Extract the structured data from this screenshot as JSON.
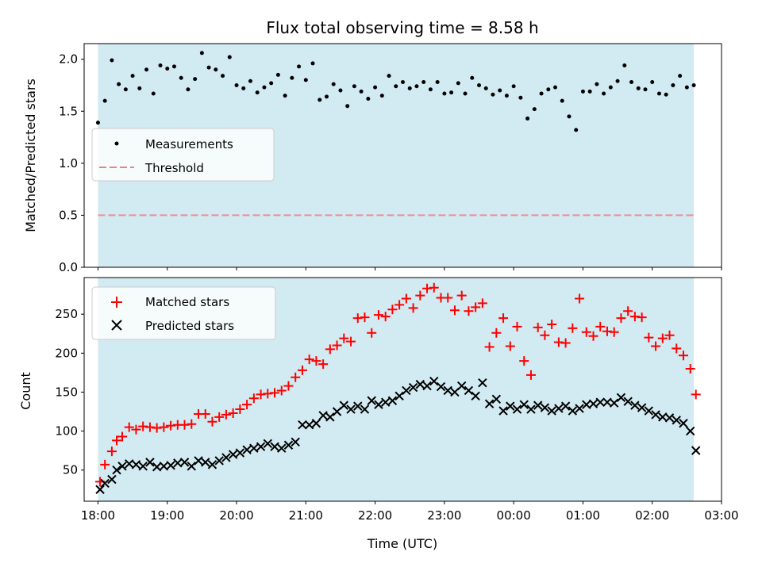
{
  "chart_data": [
    {
      "type": "scatter",
      "panel": "top",
      "title": "Flux total observing time = 8.58 h",
      "ylabel": "Matched/Predicted stars",
      "xlabel": "",
      "xlim": [
        17.8,
        27.0
      ],
      "ylim": [
        0.0,
        2.15
      ],
      "yticks": [
        0.0,
        0.5,
        1.0,
        1.5,
        2.0
      ],
      "ytick_labels": [
        "0.0",
        "0.5",
        "1.0",
        "1.5",
        "2.0"
      ],
      "shaded_span": [
        18.0,
        26.6
      ],
      "legend": {
        "location": "center-left",
        "entries": [
          "Measurements",
          "Threshold"
        ]
      },
      "threshold": {
        "name": "Threshold",
        "value": 0.5,
        "color": "#f08080"
      },
      "series": [
        {
          "name": "Measurements",
          "marker": "dot",
          "color": "#000000",
          "x": [
            18.0,
            18.1,
            18.2,
            18.3,
            18.4,
            18.5,
            18.6,
            18.7,
            18.8,
            18.9,
            19.0,
            19.1,
            19.2,
            19.3,
            19.4,
            19.5,
            19.6,
            19.7,
            19.8,
            19.9,
            20.0,
            20.1,
            20.2,
            20.3,
            20.4,
            20.5,
            20.6,
            20.7,
            20.8,
            20.9,
            21.0,
            21.1,
            21.2,
            21.3,
            21.4,
            21.5,
            21.6,
            21.7,
            21.8,
            21.9,
            22.0,
            22.1,
            22.2,
            22.3,
            22.4,
            22.5,
            22.6,
            22.7,
            22.8,
            22.9,
            23.0,
            23.1,
            23.2,
            23.3,
            23.4,
            23.5,
            23.6,
            23.7,
            23.8,
            23.9,
            24.0,
            24.1,
            24.2,
            24.3,
            24.4,
            24.5,
            24.6,
            24.7,
            24.8,
            24.9,
            25.0,
            25.1,
            25.2,
            25.3,
            25.4,
            25.5,
            25.6,
            25.7,
            25.8,
            25.9,
            26.0,
            26.1,
            26.2,
            26.3,
            26.4,
            26.5,
            26.6
          ],
          "y": [
            1.39,
            1.6,
            1.99,
            1.76,
            1.71,
            1.84,
            1.72,
            1.9,
            1.67,
            1.94,
            1.91,
            1.93,
            1.82,
            1.71,
            1.81,
            2.06,
            1.92,
            1.9,
            1.84,
            2.02,
            1.75,
            1.72,
            1.79,
            1.68,
            1.73,
            1.77,
            1.85,
            1.65,
            1.82,
            1.93,
            1.8,
            1.96,
            1.61,
            1.64,
            1.76,
            1.7,
            1.55,
            1.74,
            1.69,
            1.62,
            1.73,
            1.65,
            1.84,
            1.74,
            1.78,
            1.72,
            1.74,
            1.78,
            1.71,
            1.78,
            1.67,
            1.68,
            1.77,
            1.67,
            1.82,
            1.75,
            1.72,
            1.66,
            1.7,
            1.65,
            1.74,
            1.63,
            1.43,
            1.52,
            1.67,
            1.71,
            1.73,
            1.6,
            1.45,
            1.32,
            1.69,
            1.69,
            1.76,
            1.67,
            1.73,
            1.79,
            1.94,
            1.78,
            1.72,
            1.71,
            1.78,
            1.67,
            1.66,
            1.75,
            1.84,
            1.73,
            1.75
          ]
        }
      ]
    },
    {
      "type": "scatter",
      "panel": "bottom",
      "title": "",
      "ylabel": "Count",
      "xlabel": "Time (UTC)",
      "xlim": [
        17.8,
        27.0
      ],
      "ylim": [
        10,
        297
      ],
      "yticks": [
        50,
        100,
        150,
        200,
        250
      ],
      "ytick_labels": [
        "50",
        "100",
        "150",
        "200",
        "250"
      ],
      "xticks": [
        18,
        19,
        20,
        21,
        22,
        23,
        24,
        25,
        26,
        27
      ],
      "xtick_labels": [
        "18:00",
        "19:00",
        "20:00",
        "21:00",
        "22:00",
        "23:00",
        "00:00",
        "01:00",
        "02:00",
        "03:00"
      ],
      "shaded_span": [
        18.0,
        26.6
      ],
      "legend": {
        "location": "top-left",
        "entries": [
          "Matched stars",
          "Predicted stars"
        ]
      },
      "series": [
        {
          "name": "Matched stars",
          "marker": "plus",
          "color": "#ff0000",
          "x": [
            18.03,
            18.1,
            18.2,
            18.27,
            18.35,
            18.45,
            18.55,
            18.65,
            18.75,
            18.85,
            18.95,
            19.05,
            19.15,
            19.25,
            19.35,
            19.45,
            19.55,
            19.65,
            19.75,
            19.85,
            19.95,
            20.05,
            20.15,
            20.25,
            20.35,
            20.45,
            20.55,
            20.65,
            20.75,
            20.85,
            20.95,
            21.05,
            21.15,
            21.25,
            21.35,
            21.45,
            21.55,
            21.65,
            21.75,
            21.85,
            21.95,
            22.05,
            22.15,
            22.25,
            22.35,
            22.45,
            22.55,
            22.65,
            22.75,
            22.85,
            22.95,
            23.05,
            23.15,
            23.25,
            23.35,
            23.45,
            23.55,
            23.65,
            23.75,
            23.85,
            23.95,
            24.05,
            24.15,
            24.25,
            24.35,
            24.45,
            24.55,
            24.65,
            24.75,
            24.85,
            24.95,
            25.05,
            25.15,
            25.25,
            25.35,
            25.45,
            25.55,
            25.65,
            25.75,
            25.85,
            25.95,
            26.05,
            26.15,
            26.25,
            26.35,
            26.45,
            26.55,
            26.63
          ],
          "y": [
            35,
            57,
            74,
            88,
            93,
            105,
            102,
            106,
            105,
            104,
            105,
            107,
            108,
            108,
            109,
            122,
            122,
            112,
            118,
            121,
            123,
            128,
            134,
            142,
            147,
            148,
            149,
            152,
            158,
            169,
            178,
            192,
            190,
            186,
            205,
            210,
            219,
            215,
            245,
            246,
            226,
            249,
            247,
            256,
            262,
            270,
            258,
            274,
            283,
            284,
            271,
            271,
            255,
            274,
            254,
            259,
            264,
            208,
            226,
            245,
            209,
            234,
            190,
            172,
            233,
            223,
            237,
            214,
            213,
            232,
            270,
            227,
            222,
            234,
            228,
            227,
            245,
            254,
            247,
            246,
            220,
            209,
            219,
            223,
            206,
            197,
            180,
            147
          ]
        },
        {
          "name": "Predicted stars",
          "marker": "x",
          "color": "#000000",
          "x": [
            18.03,
            18.1,
            18.2,
            18.27,
            18.35,
            18.45,
            18.55,
            18.65,
            18.75,
            18.85,
            18.95,
            19.05,
            19.15,
            19.25,
            19.35,
            19.45,
            19.55,
            19.65,
            19.75,
            19.85,
            19.95,
            20.05,
            20.15,
            20.25,
            20.35,
            20.45,
            20.55,
            20.65,
            20.75,
            20.85,
            20.95,
            21.05,
            21.15,
            21.25,
            21.35,
            21.45,
            21.55,
            21.65,
            21.75,
            21.85,
            21.95,
            22.05,
            22.15,
            22.25,
            22.35,
            22.45,
            22.55,
            22.65,
            22.75,
            22.85,
            22.95,
            23.05,
            23.15,
            23.25,
            23.35,
            23.45,
            23.55,
            23.65,
            23.75,
            23.85,
            23.95,
            24.05,
            24.15,
            24.25,
            24.35,
            24.45,
            24.55,
            24.65,
            24.75,
            24.85,
            24.95,
            25.05,
            25.15,
            25.25,
            25.35,
            25.45,
            25.55,
            25.65,
            25.75,
            25.85,
            25.95,
            26.05,
            26.15,
            26.25,
            26.35,
            26.45,
            26.55,
            26.63
          ],
          "y": [
            25,
            33,
            38,
            50,
            55,
            58,
            57,
            55,
            60,
            54,
            55,
            56,
            59,
            60,
            55,
            62,
            60,
            57,
            62,
            66,
            70,
            72,
            76,
            78,
            80,
            84,
            80,
            78,
            82,
            86,
            108,
            108,
            110,
            120,
            118,
            125,
            133,
            128,
            132,
            128,
            139,
            134,
            137,
            139,
            145,
            152,
            156,
            160,
            158,
            164,
            157,
            152,
            150,
            158,
            152,
            145,
            162,
            135,
            141,
            126,
            132,
            128,
            134,
            128,
            133,
            130,
            126,
            129,
            132,
            126,
            129,
            134,
            135,
            137,
            137,
            136,
            143,
            138,
            133,
            130,
            126,
            121,
            118,
            117,
            114,
            110,
            100,
            75
          ]
        }
      ]
    }
  ]
}
